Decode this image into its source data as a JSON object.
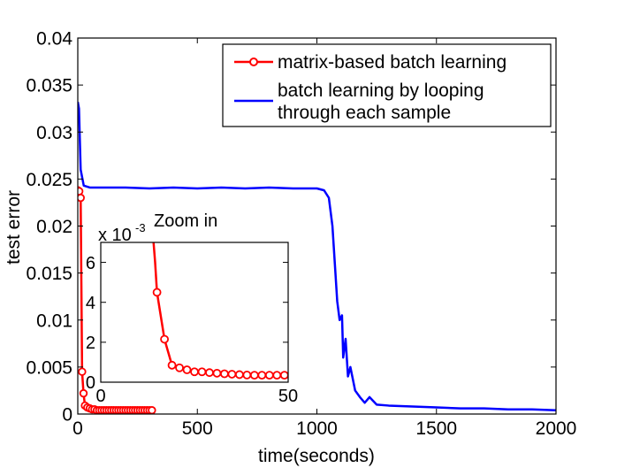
{
  "chart_data": [
    {
      "type": "line",
      "xlabel": "time(seconds)",
      "ylabel": "test error",
      "xlim": [
        0,
        2000
      ],
      "ylim": [
        0,
        0.04
      ],
      "xticks": [
        "0",
        "500",
        "1000",
        "1500",
        "2000"
      ],
      "xtick_values": [
        0,
        500,
        1000,
        1500,
        2000
      ],
      "yticks": [
        "0",
        "0.005",
        "0.01",
        "0.015",
        "0.02",
        "0.025",
        "0.03",
        "0.035",
        "0.04"
      ],
      "ytick_values": [
        0,
        0.005,
        0.01,
        0.015,
        0.02,
        0.025,
        0.03,
        0.035,
        0.04
      ],
      "grid": false,
      "legend_position": "top-right",
      "series": [
        {
          "name": "matrix-based batch learning",
          "color": "#ff0000",
          "marker": "circle",
          "x": [
            0,
            6,
            12,
            18,
            24,
            30,
            40,
            50,
            60,
            70,
            80,
            90,
            100,
            110,
            120,
            130,
            140,
            150,
            160,
            170,
            180,
            190,
            200,
            210,
            220,
            230,
            240,
            250,
            260,
            270,
            280,
            290,
            300,
            310
          ],
          "y": [
            0.0238,
            0.0237,
            0.023,
            0.0045,
            0.0022,
            0.0009,
            0.0007,
            0.0006,
            0.0005,
            0.0005,
            0.0004,
            0.0004,
            0.0004,
            0.0004,
            0.0004,
            0.0004,
            0.0004,
            0.0004,
            0.0004,
            0.0004,
            0.0004,
            0.0004,
            0.0004,
            0.0004,
            0.0004,
            0.0004,
            0.0004,
            0.0004,
            0.0004,
            0.0004,
            0.0004,
            0.0004,
            0.0004,
            0.0004
          ]
        },
        {
          "name": "batch learning by looping through each sample",
          "name_lines": [
            "batch learning by looping",
            "through each sample"
          ],
          "color": "#0000ff",
          "marker": "none",
          "x": [
            0,
            5,
            12,
            25,
            50,
            100,
            200,
            300,
            400,
            500,
            600,
            700,
            800,
            900,
            1000,
            1030,
            1050,
            1065,
            1075,
            1085,
            1095,
            1105,
            1110,
            1120,
            1130,
            1140,
            1160,
            1180,
            1200,
            1220,
            1250,
            1300,
            1400,
            1500,
            1600,
            1700,
            1800,
            1900,
            2000
          ],
          "y": [
            0.0332,
            0.0325,
            0.026,
            0.0243,
            0.0241,
            0.0241,
            0.0241,
            0.024,
            0.0241,
            0.024,
            0.0241,
            0.024,
            0.0241,
            0.024,
            0.024,
            0.0238,
            0.023,
            0.02,
            0.016,
            0.012,
            0.01,
            0.0105,
            0.006,
            0.008,
            0.004,
            0.005,
            0.0025,
            0.0018,
            0.0012,
            0.0018,
            0.001,
            0.0009,
            0.0008,
            0.0007,
            0.0006,
            0.0006,
            0.0005,
            0.0005,
            0.0004
          ]
        }
      ]
    },
    {
      "type": "line",
      "title": "Zoom in",
      "ylabel": "",
      "xlabel": "",
      "scale_label": "x 10",
      "scale_exponent": "-3",
      "xlim": [
        0,
        50
      ],
      "ylim": [
        0,
        7
      ],
      "xticks": [
        "0",
        "50"
      ],
      "xtick_values": [
        0,
        50
      ],
      "yticks": [
        "0",
        "2",
        "4",
        "6"
      ],
      "ytick_values": [
        0,
        2,
        4,
        6
      ],
      "series": [
        {
          "name": "matrix-based batch learning",
          "color": "#ff0000",
          "marker": "circle",
          "x": [
            14,
            14.5,
            15,
            17,
            19,
            21,
            23,
            25,
            27,
            29,
            31,
            33,
            35,
            37,
            39,
            41,
            43,
            45,
            47,
            49
          ],
          "y": [
            7.2,
            6.0,
            4.5,
            2.15,
            0.85,
            0.72,
            0.62,
            0.52,
            0.52,
            0.48,
            0.45,
            0.42,
            0.4,
            0.38,
            0.36,
            0.35,
            0.35,
            0.35,
            0.35,
            0.35
          ],
          "marker_from": 2
        }
      ]
    }
  ]
}
